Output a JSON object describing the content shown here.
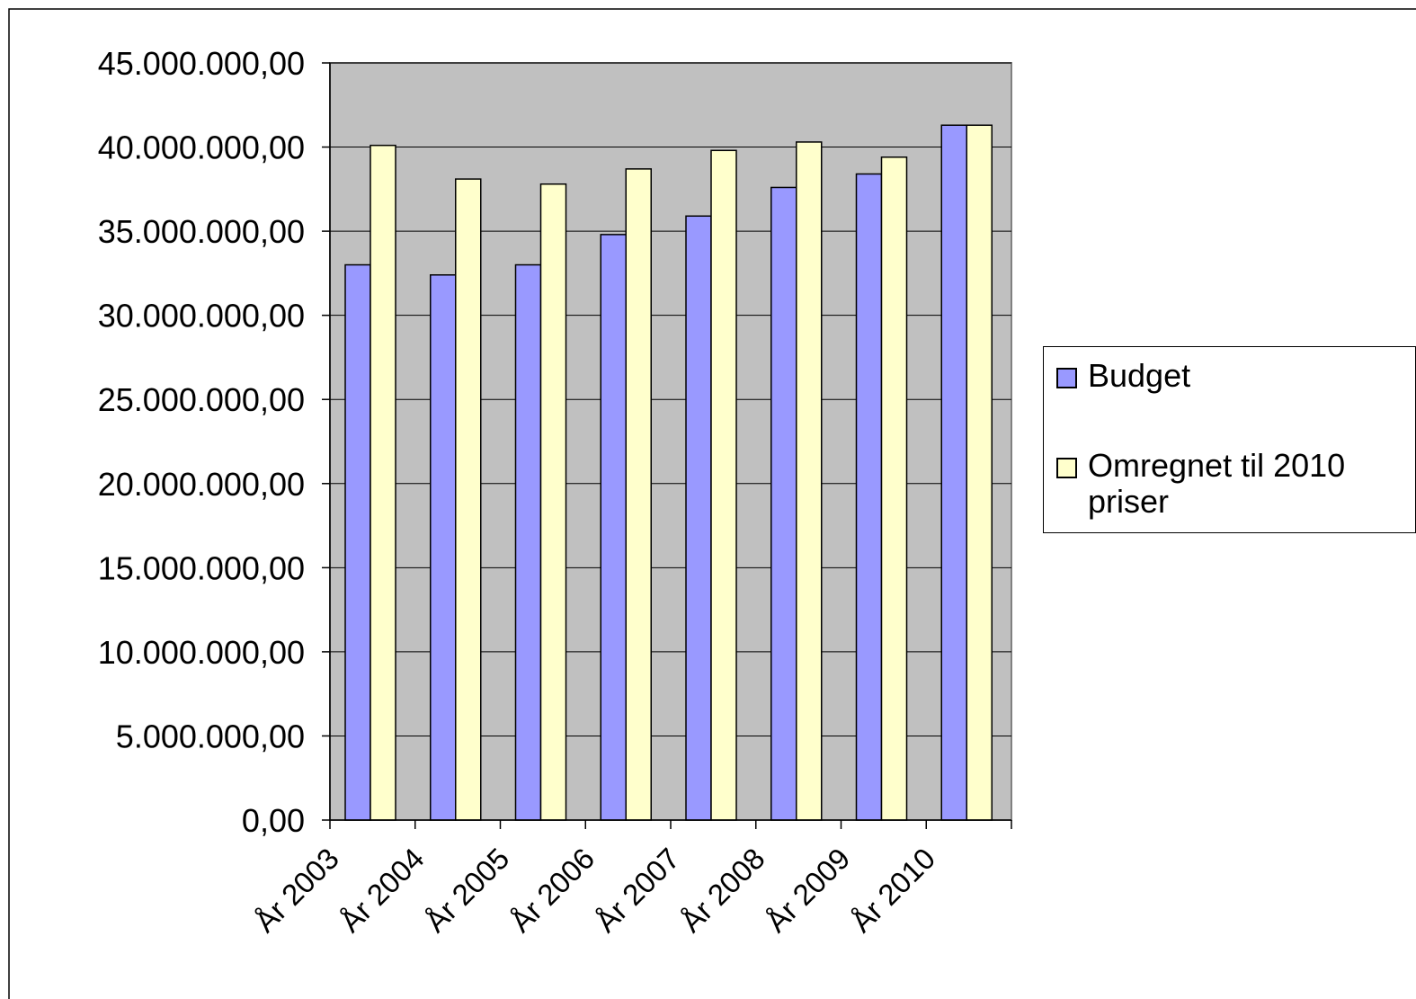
{
  "chart_data": {
    "type": "bar",
    "title": "",
    "xlabel": "",
    "ylabel": "",
    "categories": [
      "År 2003",
      "År 2004",
      "År 2005",
      "År 2006",
      "År 2007",
      "År 2008",
      "År 2009",
      "År 2010"
    ],
    "series": [
      {
        "name": "Budget",
        "color": "#9999ff",
        "values": [
          33000000,
          32400000,
          33000000,
          34800000,
          35900000,
          37600000,
          38400000,
          41300000
        ]
      },
      {
        "name": "Omregnet til 2010 priser",
        "color": "#ffffcc",
        "values": [
          40100000,
          38100000,
          37800000,
          38700000,
          39800000,
          40300000,
          39400000,
          41300000
        ]
      }
    ],
    "ylim": [
      0,
      45000000
    ],
    "yticks": [
      0,
      5000000,
      10000000,
      15000000,
      20000000,
      25000000,
      30000000,
      35000000,
      40000000,
      45000000
    ],
    "ytick_labels": [
      "0,00",
      "5.000.000,00",
      "10.000.000,00",
      "15.000.000,00",
      "20.000.000,00",
      "25.000.000,00",
      "30.000.000,00",
      "35.000.000,00",
      "40.000.000,00",
      "45.000.000,00"
    ],
    "grid": true,
    "plot_background": "#c0c0c0",
    "legend_position": "right"
  }
}
